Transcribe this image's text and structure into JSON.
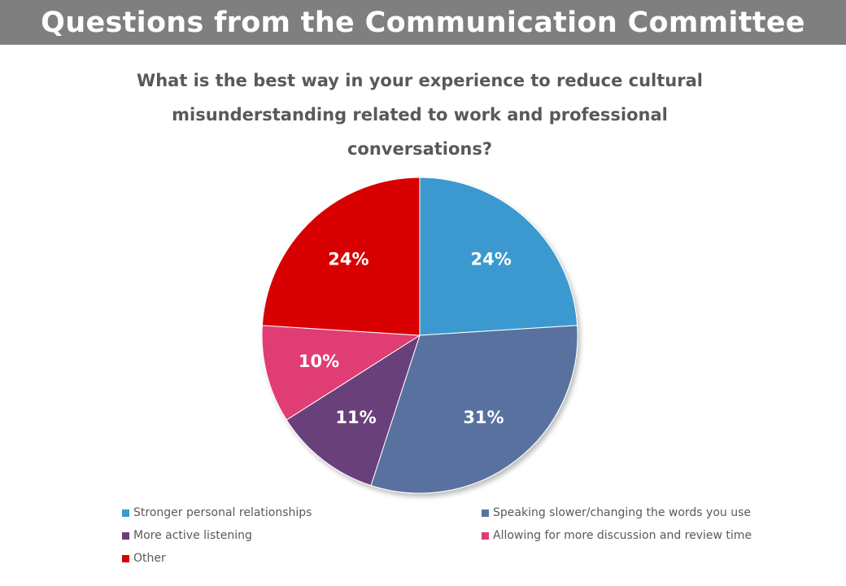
{
  "header": {
    "title": "Questions from the Communication Committee"
  },
  "chart_data": {
    "type": "pie",
    "title_lines": [
      "What is the best way in your experience to reduce cultural",
      "misunderstanding related to work and professional",
      "conversations?"
    ],
    "series": [
      {
        "name": "Stronger personal relationships",
        "value": 24,
        "label": "24%",
        "color": "#3b99d0"
      },
      {
        "name": "Speaking slower/changing the words you use",
        "value": 31,
        "label": "31%",
        "color": "#58719e"
      },
      {
        "name": "More active listening",
        "value": 11,
        "label": "11%",
        "color": "#6b3f7a"
      },
      {
        "name": "Allowing for more discussion and review time",
        "value": 10,
        "label": "10%",
        "color": "#e03d74"
      },
      {
        "name": "Other",
        "value": 24,
        "label": "24%",
        "color": "#d80000"
      }
    ],
    "start_angle_deg": 0,
    "direction": "clockwise",
    "legend_position": "bottom"
  }
}
